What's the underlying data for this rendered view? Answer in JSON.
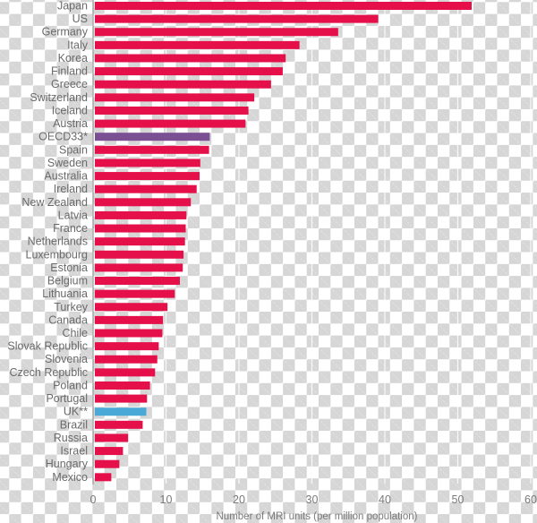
{
  "chart_data": {
    "type": "bar",
    "orientation": "horizontal",
    "title": "",
    "xlabel": "Number of MRI units (per million population)",
    "ylabel": "",
    "xlim": [
      0,
      60
    ],
    "xticks": [
      0,
      10,
      20,
      30,
      40,
      50,
      60
    ],
    "grid": "vertical, faint white lines at each tick",
    "legend": null,
    "categories": [
      "Japan",
      "US",
      "Germany",
      "Italy",
      "Korea",
      "Finland",
      "Greece",
      "Switzerland",
      "Iceland",
      "Austria",
      "OECD33*",
      "Spain",
      "Sweden",
      "Australia",
      "Ireland",
      "New Zealand",
      "Latvia",
      "France",
      "Netherlands",
      "Luxembourg",
      "Estonia",
      "Belgium",
      "Lithuania",
      "Turkey",
      "Canada",
      "Chile",
      "Slovak Republic",
      "Slovenia",
      "Czech Republic",
      "Poland",
      "Portugal",
      "UK**",
      "Brazil",
      "Russia",
      "Israel",
      "Hungary",
      "Mexico"
    ],
    "values": [
      51.9,
      39.1,
      33.6,
      28.3,
      26.4,
      26.0,
      24.4,
      22.1,
      21.3,
      20.9,
      16.0,
      15.9,
      14.7,
      14.6,
      14.2,
      13.4,
      12.8,
      12.7,
      12.6,
      12.4,
      12.3,
      11.9,
      11.2,
      10.2,
      9.6,
      9.5,
      9.0,
      8.8,
      8.5,
      7.8,
      7.4,
      7.3,
      6.8,
      4.8,
      4.1,
      3.6,
      2.5
    ],
    "highlights": {
      "OECD33*": "#7a4f93",
      "UK**": "#4aa9d6"
    }
  },
  "colors": {
    "bar_default": "#e5104a",
    "bar_oecd": "#7a4f93",
    "bar_uk": "#4aa9d6",
    "axis_line": "#9a9a9a",
    "gridline": "#ffffff",
    "text": "#6a6a6a"
  },
  "axis": {
    "x_title": "Number of MRI units (per million population)",
    "tick_labels": [
      "0",
      "10",
      "20",
      "30",
      "40",
      "50",
      "60"
    ]
  }
}
